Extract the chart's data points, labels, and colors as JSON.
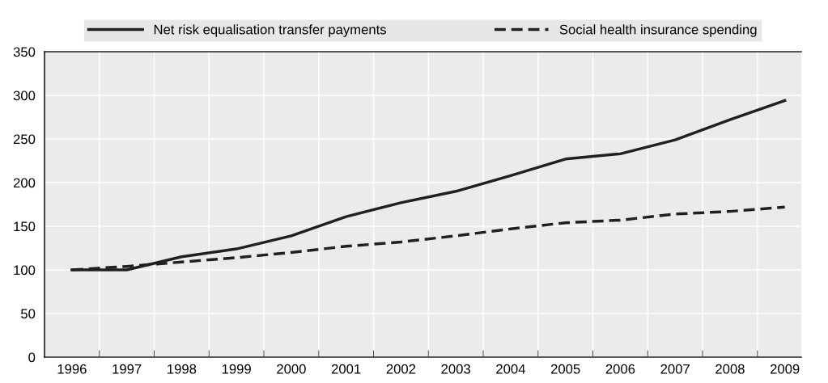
{
  "chart_data": {
    "type": "line",
    "categories": [
      "1996",
      "1997",
      "1998",
      "1999",
      "2000",
      "2001",
      "2002",
      "2003",
      "2004",
      "2005",
      "2006",
      "2007",
      "2008",
      "2009"
    ],
    "series": [
      {
        "name": "Net risk equalisation transfer payments",
        "color": "#231f20",
        "line_style": "solid",
        "values": [
          100,
          100,
          115,
          124,
          139,
          161,
          177,
          190,
          208,
          227,
          233,
          249,
          272,
          294
        ]
      },
      {
        "name": "Social health insurance spending",
        "color": "#231f20",
        "line_style": "dashed",
        "values": [
          100,
          104,
          109,
          114,
          120,
          127,
          132,
          139,
          147,
          154,
          157,
          164,
          167,
          172
        ]
      }
    ],
    "ylim": [
      0,
      350
    ],
    "yticks": [
      0,
      50,
      100,
      150,
      200,
      250,
      300,
      350
    ],
    "grid": true,
    "legend": "top",
    "marker": "none"
  }
}
